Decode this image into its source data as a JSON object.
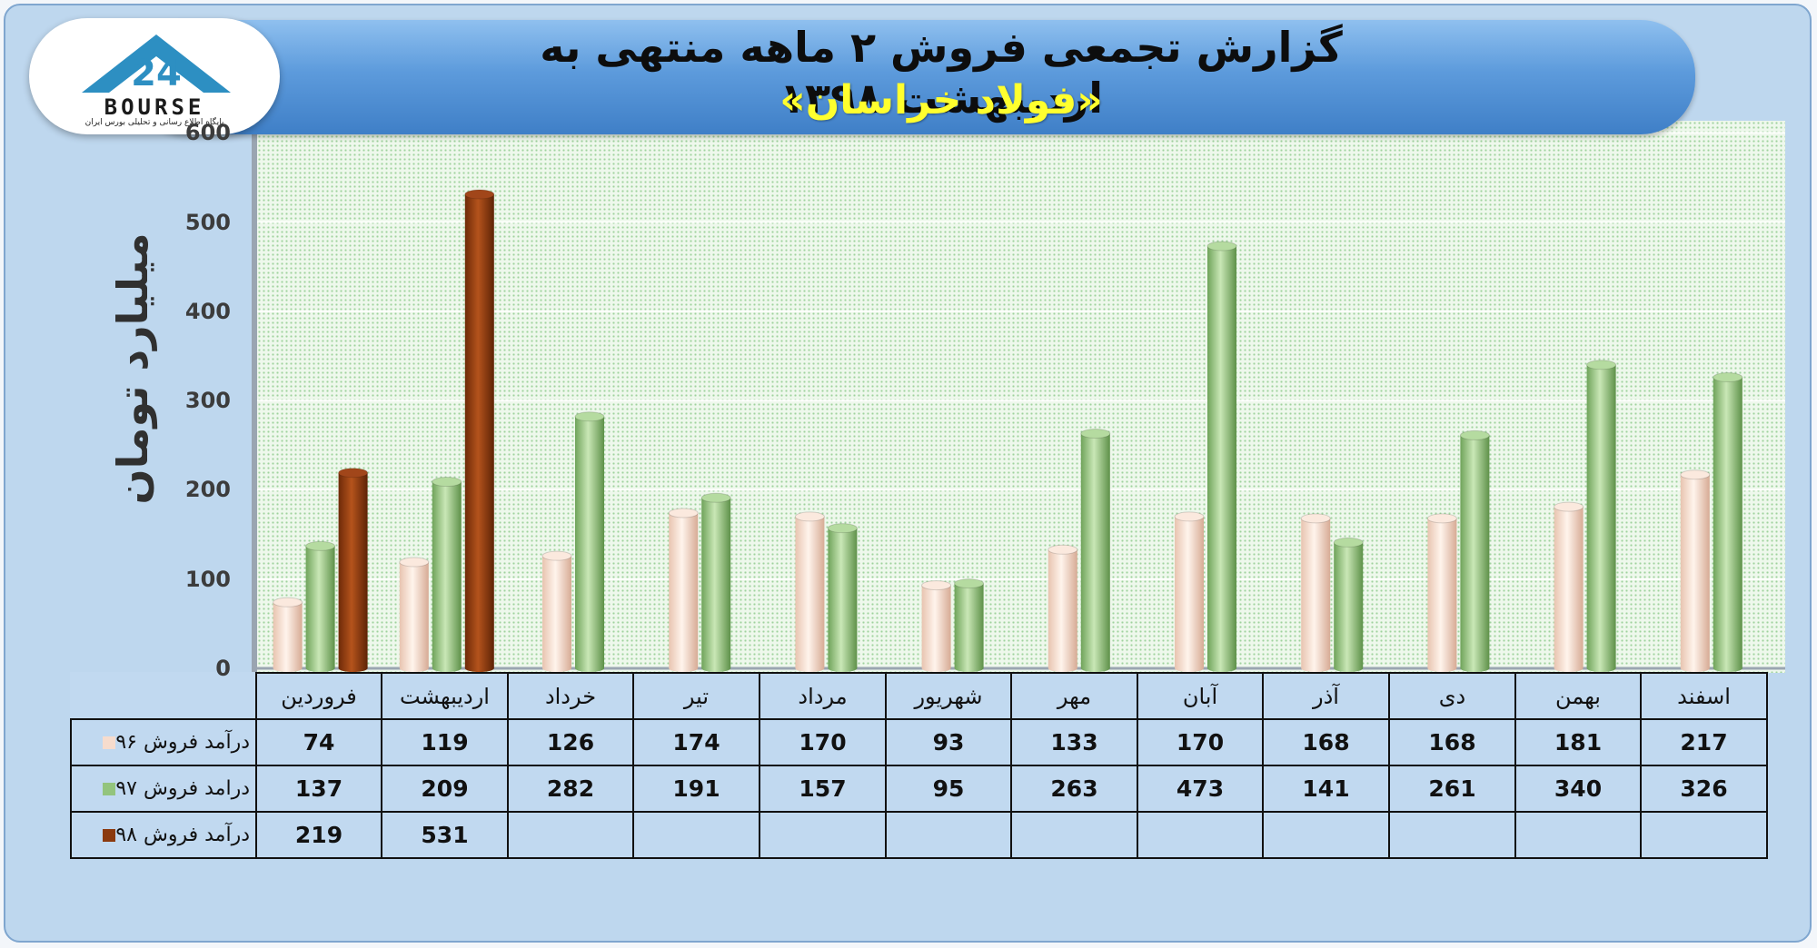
{
  "header": {
    "title": "گزارش تجمعی فروش ۲ ماهه منتهی به اردیبهشت ۱۳۹۸",
    "subtitle": "«فولاد خراسان»"
  },
  "logo": {
    "wordmark": "BOURSE",
    "caption": "پایگاه اطلاع رسانی و تحلیلی بورس ایران",
    "icon": "bourse-24-logo-icon"
  },
  "colors": {
    "s96": "#f6dccd",
    "s97": "#93c47d",
    "s98": "#8b3a0f",
    "banner": "#5d9bdc",
    "subtitle": "#ffff2e"
  },
  "chart_data": {
    "type": "bar",
    "title": "گزارش تجمعی فروش ۲ ماهه منتهی به اردیبهشت ۱۳۹۸",
    "subtitle": "«فولاد خراسان»",
    "ylabel": "میلیارد تومان",
    "xlabel": "",
    "ylim": [
      0,
      600
    ],
    "yticks": [
      0,
      100,
      200,
      300,
      400,
      500,
      600
    ],
    "grid": true,
    "legend_position": "table-left",
    "categories": [
      "فروردین",
      "اردیبهشت",
      "خرداد",
      "تیر",
      "مرداد",
      "شهریور",
      "مهر",
      "آبان",
      "آذر",
      "دی",
      "بهمن",
      "اسفند"
    ],
    "series": [
      {
        "name": "درآمد فروش ۹۶",
        "color": "#f6dccd",
        "values": [
          74,
          119,
          126,
          174,
          170,
          93,
          133,
          170,
          168,
          168,
          181,
          217
        ]
      },
      {
        "name": "درامد فروش ۹۷",
        "color": "#93c47d",
        "values": [
          137,
          209,
          282,
          191,
          157,
          95,
          263,
          473,
          141,
          261,
          340,
          326
        ]
      },
      {
        "name": "درآمد فروش ۹۸",
        "color": "#8b3a0f",
        "values": [
          219,
          531,
          null,
          null,
          null,
          null,
          null,
          null,
          null,
          null,
          null,
          null
        ]
      }
    ]
  }
}
